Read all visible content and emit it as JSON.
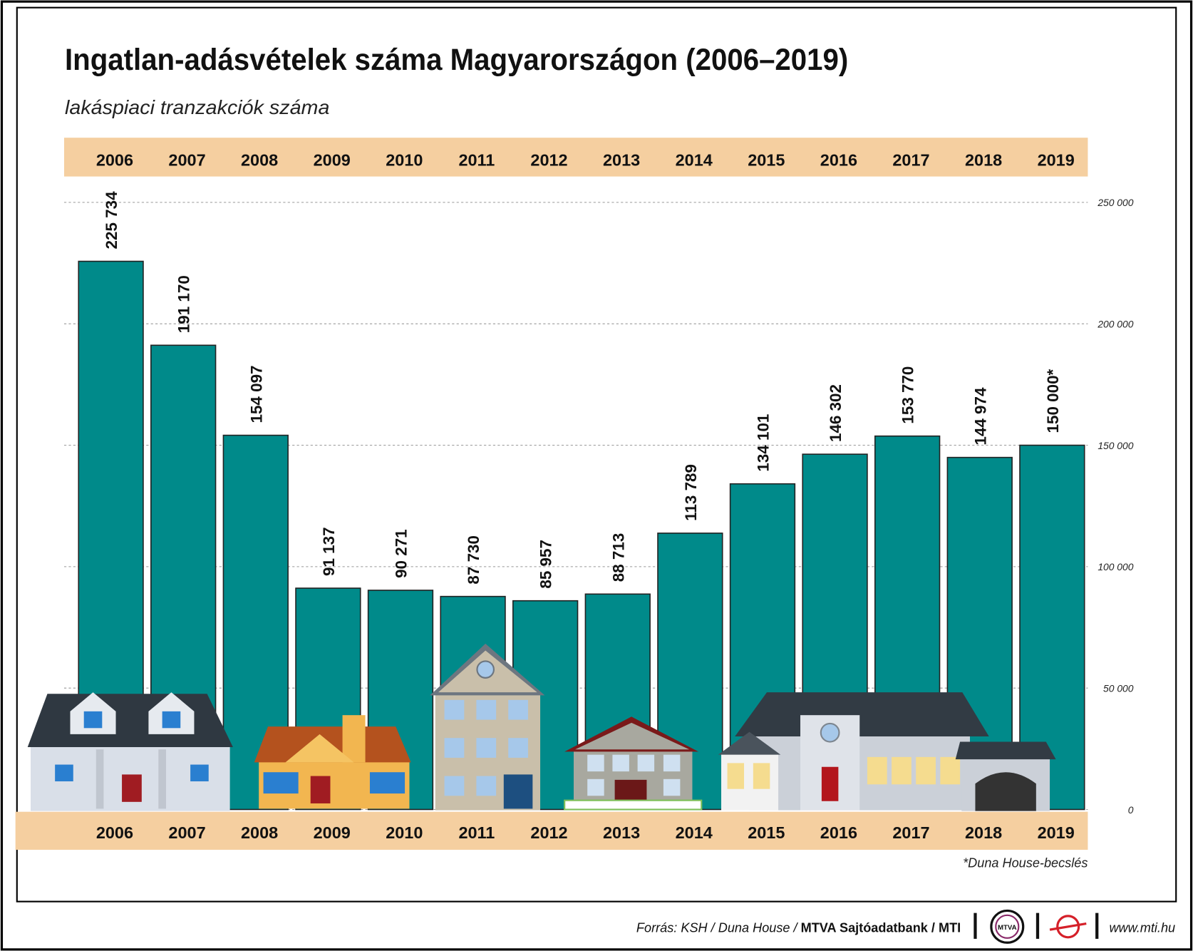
{
  "chart_data": {
    "type": "bar",
    "title": "Ingatlan-adásvételek száma Magyarországon (2006–2019)",
    "subtitle": "lakáspiaci tranzakciók száma",
    "categories": [
      "2006",
      "2007",
      "2008",
      "2009",
      "2010",
      "2011",
      "2012",
      "2013",
      "2014",
      "2015",
      "2016",
      "2017",
      "2018",
      "2019"
    ],
    "values": [
      225734,
      191170,
      154097,
      91137,
      90271,
      87730,
      85957,
      88713,
      113789,
      134101,
      146302,
      153770,
      144974,
      150000
    ],
    "value_labels": [
      "225 734",
      "191 170",
      "154 097",
      "91 137",
      "90 271",
      "87 730",
      "85 957",
      "88 713",
      "113 789",
      "134 101",
      "146 302",
      "153 770",
      "144 974",
      "150 000*"
    ],
    "color": "#008a8a",
    "ylim": [
      0,
      250000
    ],
    "yticks": [
      0,
      {
        "value": 50000,
        "label": "50 000"
      },
      {
        "value": 100000,
        "label": "100 000"
      },
      {
        "value": 150000,
        "label": "150 000"
      },
      {
        "value": 200000,
        "label": "200 000"
      },
      {
        "value": 250000,
        "label": "250 000"
      }
    ],
    "grid": true,
    "footnote": "*Duna House-becslés"
  },
  "footer": {
    "source": "Forrás: KSH / Duna House / ",
    "source_bold": "MTVA Sajtóadatbank / MTI",
    "logo": "MTVA",
    "url": "www.mti.hu"
  }
}
